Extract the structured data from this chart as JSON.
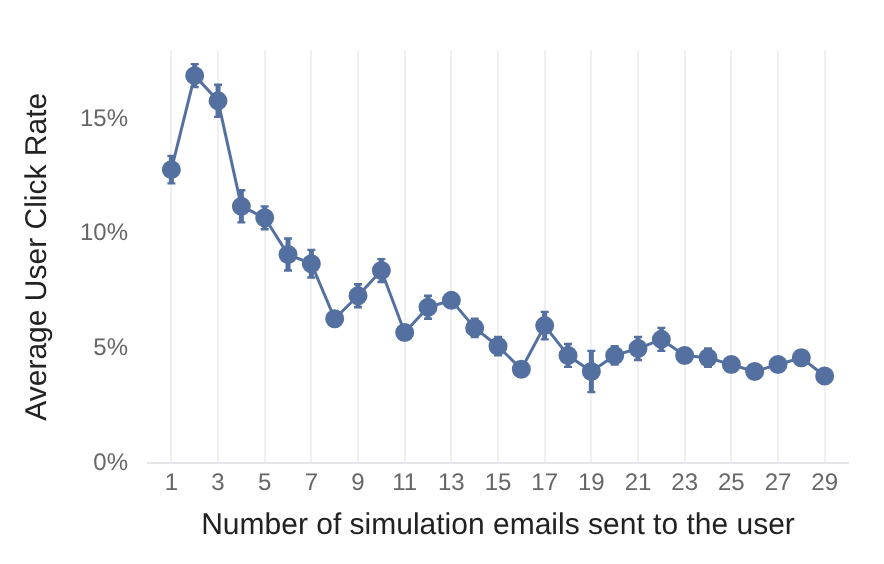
{
  "chart_data": {
    "type": "line",
    "xlabel": "Number of simulation emails sent to the user",
    "ylabel": "Average User Click Rate",
    "x": [
      1,
      2,
      3,
      4,
      5,
      6,
      7,
      8,
      9,
      10,
      11,
      12,
      13,
      14,
      15,
      16,
      17,
      18,
      19,
      20,
      21,
      22,
      23,
      24,
      25,
      26,
      27,
      28,
      29
    ],
    "series": [
      {
        "color": "#5470a0",
        "values": [
          12.8,
          16.9,
          15.8,
          11.2,
          10.7,
          9.1,
          8.7,
          6.3,
          7.3,
          8.4,
          5.7,
          6.8,
          7.1,
          5.9,
          5.1,
          4.1,
          6.0,
          4.7,
          4.0,
          4.7,
          5.0,
          5.4,
          4.7,
          4.6,
          4.3,
          4.0,
          4.3,
          4.6,
          3.8
        ],
        "errors": [
          0.6,
          0.5,
          0.7,
          0.7,
          0.5,
          0.7,
          0.6,
          0.3,
          0.5,
          0.5,
          0.3,
          0.5,
          0.2,
          0.4,
          0.4,
          0.2,
          0.6,
          0.5,
          0.9,
          0.4,
          0.5,
          0.5,
          0.3,
          0.4,
          0.3,
          0.3,
          0.2,
          0.3,
          0.2
        ]
      }
    ],
    "xlim": [
      0,
      30
    ],
    "xticks": [
      1,
      3,
      5,
      7,
      9,
      11,
      13,
      15,
      17,
      19,
      21,
      23,
      25,
      27,
      29
    ],
    "ylim": [
      0,
      18
    ],
    "yticks": [
      {
        "value": 0,
        "label": "0%"
      },
      {
        "value": 5,
        "label": "5%"
      },
      {
        "value": 10,
        "label": "10%"
      },
      {
        "value": 15,
        "label": "15%"
      }
    ],
    "grid": "x",
    "legend": false,
    "marker": "circle",
    "line_style": "solid"
  }
}
